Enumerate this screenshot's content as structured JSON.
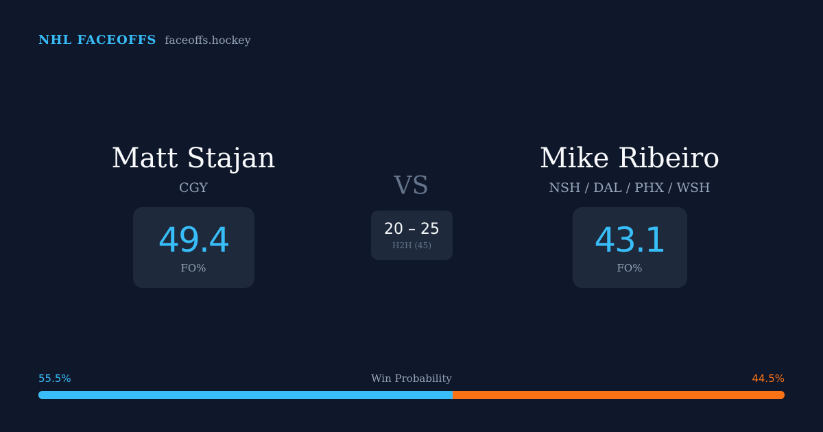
{
  "brand": {
    "title": "NHL FACEOFFS",
    "domain": "faceoffs.hockey"
  },
  "players": {
    "left": {
      "name": "Matt Stajan",
      "team": "CGY",
      "fo_pct": "49.4",
      "fo_label": "FO%"
    },
    "right": {
      "name": "Mike Ribeiro",
      "team": "NSH / DAL / PHX / WSH",
      "fo_pct": "43.1",
      "fo_label": "FO%"
    }
  },
  "vs_label": "VS",
  "h2h": {
    "score": "20 – 25",
    "label": "H2H (45)"
  },
  "win_probability": {
    "title": "Win Probability",
    "left_label": "55.5%",
    "right_label": "44.5%",
    "left_value": 55.5,
    "right_value": 44.5
  },
  "colors": {
    "background": "#0f172a",
    "card": "#1e293b",
    "accent_blue": "#38bdf8",
    "accent_orange": "#f97316",
    "muted": "#94a3b8"
  }
}
